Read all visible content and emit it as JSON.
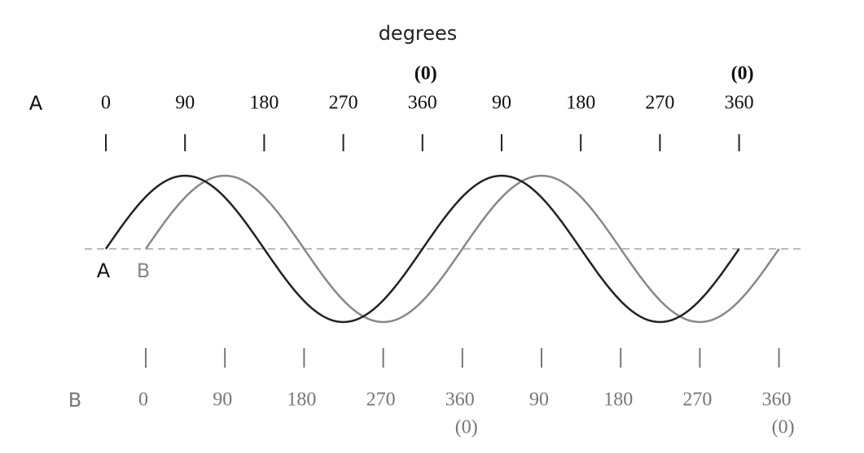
{
  "title": "degrees",
  "axis_a": {
    "name": "A",
    "labels": [
      "0",
      "90",
      "180",
      "270",
      "360",
      "90",
      "180",
      "270",
      "360"
    ],
    "zero_labels": [
      "(0)",
      "(0)"
    ]
  },
  "axis_b": {
    "name": "B",
    "labels": [
      "0",
      "90",
      "180",
      "270",
      "360",
      "90",
      "180",
      "270",
      "360"
    ],
    "zero_labels": [
      "(0)",
      "(0)"
    ]
  },
  "curve_labels": [
    "A",
    "B"
  ]
}
